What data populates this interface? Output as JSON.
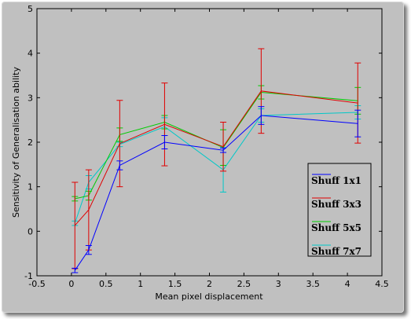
{
  "chart_data": {
    "type": "line",
    "title": "",
    "xlabel": "Mean pixel displacement",
    "ylabel": "Sensitivity of Generalisation ability",
    "xlim": [
      -0.5,
      4.5
    ],
    "ylim": [
      -1,
      5
    ],
    "xticks": [
      "-0.5",
      "0",
      "0.5",
      "1",
      "1.5",
      "2",
      "2.5",
      "3",
      "3.5",
      "4",
      "4.5"
    ],
    "yticks": [
      "-1",
      "0",
      "1",
      "2",
      "3",
      "4",
      "5"
    ],
    "grid": false,
    "legend_position": "bottom-right",
    "x": [
      0.05,
      0.25,
      0.7,
      1.35,
      2.2,
      2.75,
      4.15
    ],
    "series": [
      {
        "name": "Shuff 1x1",
        "color": "#0000ff",
        "values": [
          -0.88,
          -0.42,
          1.48,
          2.0,
          1.82,
          2.6,
          2.42
        ],
        "errors": [
          0.05,
          0.1,
          0.1,
          0.15,
          0.05,
          0.2,
          0.3
        ]
      },
      {
        "name": "Shuff 3x3",
        "color": "#e00000",
        "values": [
          0.13,
          0.48,
          1.97,
          2.4,
          1.9,
          3.15,
          2.88
        ],
        "errors": [
          0.97,
          0.9,
          0.97,
          0.93,
          0.55,
          0.95,
          0.9
        ]
      },
      {
        "name": "Shuff 5x5",
        "color": "#00cc00",
        "values": [
          0.73,
          0.8,
          2.17,
          2.45,
          1.88,
          3.12,
          2.93
        ],
        "errors": [
          0.05,
          0.1,
          0.15,
          0.15,
          0.4,
          0.15,
          0.3
        ]
      },
      {
        "name": "Shuff 7x7",
        "color": "#00c8c8",
        "values": [
          0.18,
          1.1,
          1.95,
          2.35,
          1.38,
          2.6,
          2.67
        ],
        "errors": [
          0.05,
          0.15,
          0.05,
          0.2,
          0.5,
          0.15,
          0.15
        ]
      }
    ]
  }
}
